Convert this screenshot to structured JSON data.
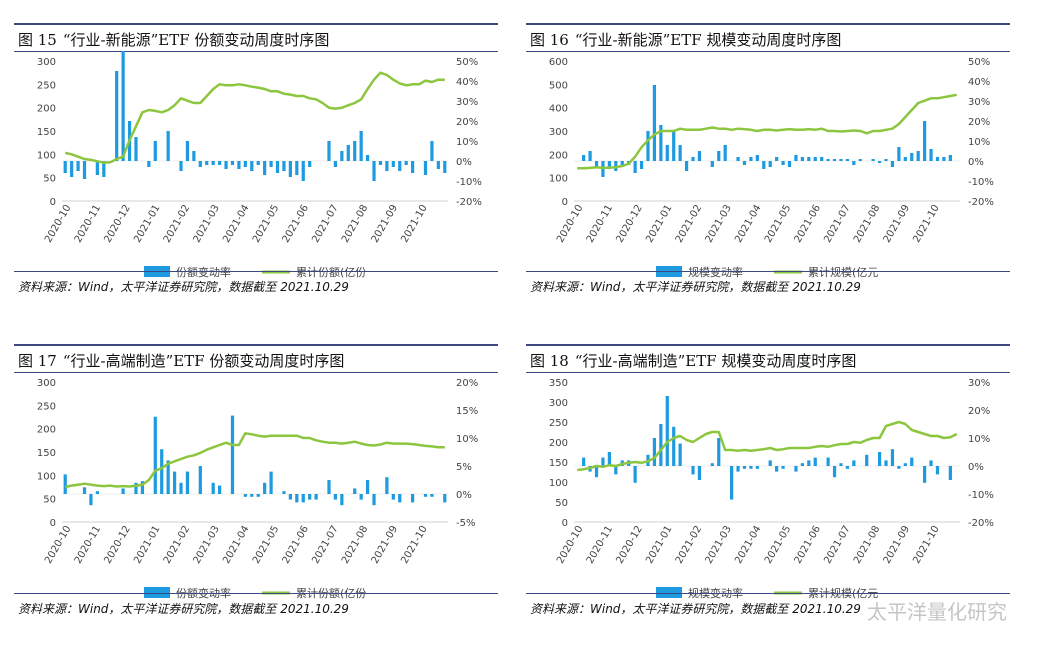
{
  "colors": {
    "bar": "#1e9be0",
    "line": "#8cc63f",
    "axis": "#d0d0d0",
    "text": "#444444",
    "rule": "#3a4a80"
  },
  "watermark": {
    "text": "太平洋量化研究"
  },
  "chart_data": [
    {
      "type": "bar",
      "fig_no": "图 15",
      "title": "“行业-新能源”ETF 份额变动周度时序图",
      "source": "资料来源：Wind，太平洋证券研究院，数据截至 2021.10.29",
      "x_ticks": [
        "2020-10",
        "2020-11",
        "2020-12",
        "2021-01",
        "2021-02",
        "2021-03",
        "2021-04",
        "2021-05",
        "2021-06",
        "2021-07",
        "2021-08",
        "2021-09",
        "2021-10"
      ],
      "left_axis": {
        "min": 0,
        "max": 300,
        "ticks": [
          0,
          50,
          100,
          150,
          200,
          250,
          300
        ],
        "tick_labels": [
          "0",
          "50",
          "100",
          "150",
          "200",
          "250",
          "300"
        ]
      },
      "right_axis": {
        "min": -20,
        "max": 50,
        "ticks": [
          -20,
          -10,
          0,
          10,
          20,
          30,
          40,
          50
        ],
        "tick_labels": [
          "-20%",
          "-10%",
          "0%",
          "10%",
          "20%",
          "30%",
          "40%",
          "50%"
        ]
      },
      "bar_series": {
        "name": "份额变动率",
        "values": [
          -6,
          -8,
          -5,
          -9,
          0,
          -7,
          -8,
          0,
          45,
          65,
          20,
          12,
          0,
          -3,
          10,
          0,
          15,
          0,
          -5,
          10,
          5,
          -3,
          -2,
          -2,
          -2,
          -4,
          -2,
          -4,
          -3,
          -5,
          -2,
          -7,
          -3,
          -6,
          -5,
          -8,
          -7,
          -10,
          -3,
          0,
          0,
          10,
          -3,
          5,
          8,
          10,
          15,
          3,
          -10,
          -2,
          -5,
          -3,
          -5,
          -2,
          -6,
          0,
          -7,
          10,
          -4,
          -6
        ]
      },
      "line_series": {
        "name": "累计份额(亿份",
        "values": [
          103,
          100,
          95,
          90,
          88,
          85,
          82,
          83,
          90,
          95,
          130,
          160,
          190,
          195,
          193,
          190,
          195,
          205,
          220,
          215,
          210,
          210,
          225,
          240,
          250,
          248,
          248,
          250,
          248,
          245,
          243,
          240,
          235,
          235,
          230,
          228,
          225,
          225,
          220,
          218,
          210,
          200,
          198,
          200,
          205,
          210,
          218,
          240,
          260,
          275,
          270,
          260,
          252,
          248,
          250,
          250,
          258,
          255,
          260,
          260
        ]
      }
    },
    {
      "type": "bar",
      "fig_no": "图 16",
      "title": "“行业-新能源”ETF 规模变动周度时序图",
      "source": "资料来源：Wind，太平洋证券研究院，数据截至 2021.10.29",
      "x_ticks": [
        "2020-10",
        "2020-11",
        "2020-12",
        "2021-01",
        "2021-02",
        "2021-03",
        "2021-04",
        "2021-05",
        "2021-06",
        "2021-07",
        "2021-08",
        "2021-09",
        "2021-10"
      ],
      "left_axis": {
        "min": 0,
        "max": 600,
        "ticks": [
          0,
          100,
          200,
          300,
          400,
          500,
          600
        ],
        "tick_labels": [
          "0",
          "100",
          "200",
          "300",
          "400",
          "500",
          "600"
        ]
      },
      "right_axis": {
        "min": -20,
        "max": 50,
        "ticks": [
          -20,
          -10,
          0,
          10,
          20,
          30,
          40,
          50
        ],
        "tick_labels": [
          "-20%",
          "-10%",
          "0%",
          "10%",
          "20%",
          "30%",
          "40%",
          "50%"
        ]
      },
      "bar_series": {
        "name": "规模变动率",
        "values": [
          0,
          3,
          5,
          -3,
          -8,
          -4,
          -5,
          -3,
          -2,
          -6,
          -4,
          15,
          38,
          18,
          8,
          15,
          8,
          -5,
          2,
          5,
          0,
          -3,
          5,
          8,
          0,
          2,
          -2,
          2,
          3,
          -4,
          -3,
          2,
          -2,
          -3,
          3,
          2,
          2,
          2,
          2,
          1,
          1,
          1,
          1,
          -2,
          1,
          0,
          1,
          -1,
          1,
          -3,
          7,
          2,
          4,
          5,
          20,
          6,
          2,
          2,
          3,
          0
        ]
      },
      "line_series": {
        "name": "累计规模(亿元",
        "values": [
          140,
          140,
          142,
          145,
          142,
          143,
          145,
          150,
          160,
          190,
          230,
          260,
          285,
          300,
          300,
          300,
          310,
          305,
          305,
          305,
          310,
          315,
          310,
          310,
          305,
          310,
          308,
          305,
          300,
          305,
          305,
          302,
          305,
          308,
          305,
          305,
          308,
          305,
          310,
          300,
          300,
          298,
          300,
          302,
          300,
          290,
          300,
          300,
          305,
          310,
          330,
          360,
          390,
          420,
          430,
          440,
          440,
          445,
          450,
          455
        ]
      }
    },
    {
      "type": "bar",
      "fig_no": "图 17",
      "title": "“行业-高端制造”ETF 份额变动周度时序图",
      "source": "资料来源：Wind，太平洋证券研究院，数据截至 2021.10.29",
      "x_ticks": [
        "2020-10",
        "2020-11",
        "2020-12",
        "2021-01",
        "2021-02",
        "2021-03",
        "2021-04",
        "2021-05",
        "2021-06",
        "2021-07",
        "2021-08",
        "2021-09",
        "2021-10"
      ],
      "left_axis": {
        "min": 0,
        "max": 300,
        "ticks": [
          0,
          50,
          100,
          150,
          200,
          250,
          300
        ],
        "tick_labels": [
          "0",
          "50",
          "100",
          "150",
          "200",
          "250",
          "300"
        ]
      },
      "right_axis": {
        "min": -5,
        "max": 20,
        "ticks": [
          -5,
          0,
          5,
          10,
          15,
          20
        ],
        "tick_labels": [
          "-5%",
          "0%",
          "5%",
          "10%",
          "15%",
          "20%"
        ]
      },
      "bar_series": {
        "name": "份额变动率",
        "values": [
          3.5,
          0,
          0,
          1.2,
          -2,
          0.5,
          0,
          0,
          0,
          1,
          0,
          2,
          2.3,
          0,
          13.8,
          8,
          6,
          4,
          2,
          4,
          0,
          5,
          0,
          2,
          1.5,
          0,
          14,
          0,
          -0.5,
          -0.5,
          -0.5,
          2,
          4,
          0,
          0.5,
          -1,
          -1.5,
          -1.5,
          -1,
          -1,
          0,
          2.5,
          -1,
          -2,
          0,
          1,
          -1,
          2.5,
          -2,
          0,
          3,
          -1,
          -1.5,
          0,
          -1.5,
          0,
          -0.5,
          -0.5,
          0,
          -1.5
        ]
      },
      "line_series": {
        "name": "累计份额(亿份",
        "values": [
          75,
          78,
          80,
          82,
          80,
          78,
          77,
          78,
          76,
          77,
          76,
          78,
          80,
          90,
          110,
          115,
          125,
          130,
          135,
          140,
          143,
          148,
          155,
          160,
          165,
          170,
          165,
          165,
          190,
          188,
          185,
          183,
          185,
          185,
          185,
          185,
          185,
          180,
          180,
          175,
          172,
          170,
          170,
          168,
          170,
          172,
          168,
          165,
          164,
          166,
          170,
          168,
          168,
          168,
          167,
          165,
          163,
          162,
          160,
          160
        ]
      }
    },
    {
      "type": "bar",
      "fig_no": "图 18",
      "title": "“行业-高端制造”ETF 规模变动周度时序图",
      "source": "资料来源：Wind，太平洋证券研究院，数据截至 2021.10.29",
      "x_ticks": [
        "2020-10",
        "2020-11",
        "2020-12",
        "2021-01",
        "2021-02",
        "2021-03",
        "2021-04",
        "2021-05",
        "2021-06",
        "2021-07",
        "2021-08",
        "2021-09",
        "2021-10"
      ],
      "left_axis": {
        "min": 0,
        "max": 350,
        "ticks": [
          0,
          50,
          100,
          150,
          200,
          250,
          300,
          350
        ],
        "tick_labels": [
          "0",
          "50",
          "100",
          "150",
          "200",
          "250",
          "300",
          "350"
        ]
      },
      "right_axis": {
        "min": -20,
        "max": 30,
        "ticks": [
          -20,
          -10,
          0,
          10,
          20,
          30
        ],
        "tick_labels": [
          "-20%",
          "-10%",
          "0%",
          "10%",
          "20%",
          "30%"
        ]
      },
      "bar_series": {
        "name": "规模变动率",
        "values": [
          0,
          3,
          -2,
          -4,
          3,
          5,
          -3,
          2,
          2,
          -6,
          0,
          4,
          10,
          15,
          25,
          14,
          8,
          0,
          -3,
          -5,
          0,
          1,
          10,
          0,
          -12,
          -2,
          -1,
          -1,
          -1,
          0,
          2,
          -2,
          -1,
          0,
          -2,
          1,
          2,
          3,
          0,
          3,
          -4,
          1,
          -1,
          2,
          0,
          4,
          0,
          5,
          2,
          6,
          -1,
          1,
          3,
          0,
          -6,
          2,
          -3,
          0,
          -5,
          0
        ]
      },
      "line_series": {
        "name": "累计规模(亿元",
        "values": [
          130,
          132,
          135,
          140,
          138,
          142,
          140,
          145,
          148,
          150,
          148,
          152,
          160,
          180,
          200,
          210,
          215,
          205,
          200,
          210,
          220,
          225,
          225,
          180,
          180,
          178,
          180,
          178,
          180,
          182,
          185,
          180,
          182,
          185,
          185,
          185,
          185,
          188,
          190,
          188,
          192,
          195,
          195,
          200,
          198,
          205,
          210,
          210,
          240,
          245,
          250,
          245,
          230,
          225,
          220,
          215,
          215,
          210,
          212,
          220
        ]
      }
    }
  ]
}
